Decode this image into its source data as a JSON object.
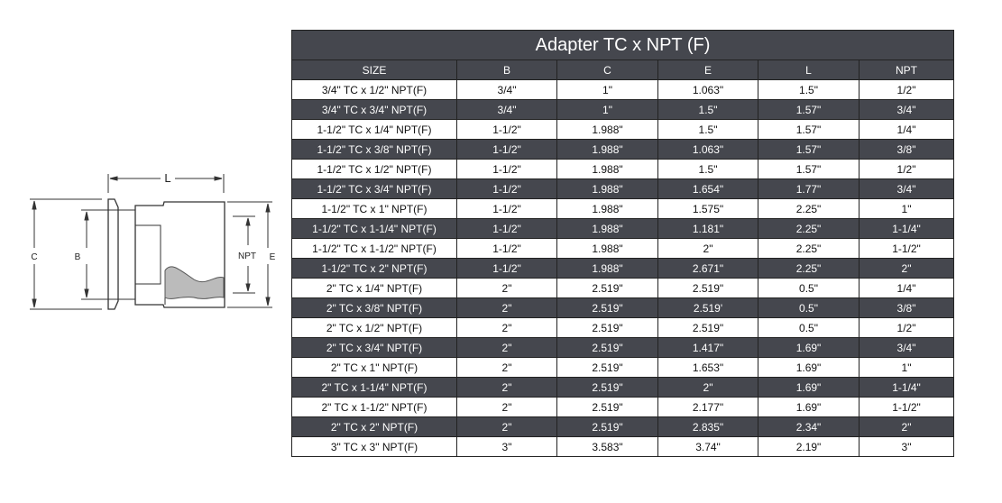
{
  "diagram": {
    "labels": {
      "L": "L",
      "C": "C",
      "B": "B",
      "NPT": "NPT",
      "E": "E"
    }
  },
  "table": {
    "title": "Adapter TC x NPT (F)",
    "headers": [
      "SIZE",
      "B",
      "C",
      "E",
      "L",
      "NPT"
    ],
    "colors": {
      "dark_row": "#45474e",
      "light_row": "#ffffff"
    },
    "rows": [
      [
        "3/4\" TC x 1/2\" NPT(F)",
        "3/4\"",
        "1\"",
        "1.063\"",
        "1.5\"",
        "1/2\""
      ],
      [
        "3/4\" TC x 3/4\" NPT(F)",
        "3/4\"",
        "1\"",
        "1.5\"",
        "1.57\"",
        "3/4\""
      ],
      [
        "1-1/2\" TC x 1/4\" NPT(F)",
        "1-1/2\"",
        "1.988\"",
        "1.5\"",
        "1.57\"",
        "1/4\""
      ],
      [
        "1-1/2\" TC x 3/8\" NPT(F)",
        "1-1/2\"",
        "1.988\"",
        "1.063\"",
        "1.57\"",
        "3/8\""
      ],
      [
        "1-1/2\" TC x 1/2\" NPT(F)",
        "1-1/2\"",
        "1.988\"",
        "1.5\"",
        "1.57\"",
        "1/2\""
      ],
      [
        "1-1/2\" TC x 3/4\" NPT(F)",
        "1-1/2\"",
        "1.988\"",
        "1.654\"",
        "1.77\"",
        "3/4\""
      ],
      [
        "1-1/2\" TC x 1\" NPT(F)",
        "1-1/2\"",
        "1.988\"",
        "1.575\"",
        "2.25\"",
        "1\""
      ],
      [
        "1-1/2\" TC x 1-1/4\" NPT(F)",
        "1-1/2\"",
        "1.988\"",
        "1.181\"",
        "2.25\"",
        "1-1/4\""
      ],
      [
        "1-1/2\" TC x 1-1/2\" NPT(F)",
        "1-1/2\"",
        "1.988\"",
        "2\"",
        "2.25\"",
        "1-1/2\""
      ],
      [
        "1-1/2\" TC x 2\" NPT(F)",
        "1-1/2\"",
        "1.988\"",
        "2.671\"",
        "2.25\"",
        "2\""
      ],
      [
        "2\" TC x 1/4\" NPT(F)",
        "2\"",
        "2.519\"",
        "2.519\"",
        "0.5\"",
        "1/4\""
      ],
      [
        "2\" TC x 3/8\" NPT(F)",
        "2\"",
        "2.519\"",
        "2.519'",
        "0.5\"",
        "3/8\""
      ],
      [
        "2\" TC x 1/2\" NPT(F)",
        "2\"",
        "2.519\"",
        "2.519\"",
        "0.5\"",
        "1/2\""
      ],
      [
        "2\" TC x 3/4\" NPT(F)",
        "2\"",
        "2.519\"",
        "1.417\"",
        "1.69\"",
        "3/4\""
      ],
      [
        "2\" TC x 1\" NPT(F)",
        "2\"",
        "2.519\"",
        "1.653\"",
        "1.69\"",
        "1\""
      ],
      [
        "2\" TC x 1-1/4\" NPT(F)",
        "2\"",
        "2.519\"",
        "2\"",
        "1.69\"",
        "1-1/4\""
      ],
      [
        "2\" TC x 1-1/2\" NPT(F)",
        "2\"",
        "2.519\"",
        "2.177\"",
        "1.69\"",
        "1-1/2\""
      ],
      [
        "2\" TC x 2\" NPT(F)",
        "2\"",
        "2.519\"",
        "2.835\"",
        "2.34\"",
        "2\""
      ],
      [
        "3\" TC x 3\" NPT(F)",
        "3\"",
        "3.583\"",
        "3.74\"",
        "2.19\"",
        "3\""
      ]
    ]
  }
}
